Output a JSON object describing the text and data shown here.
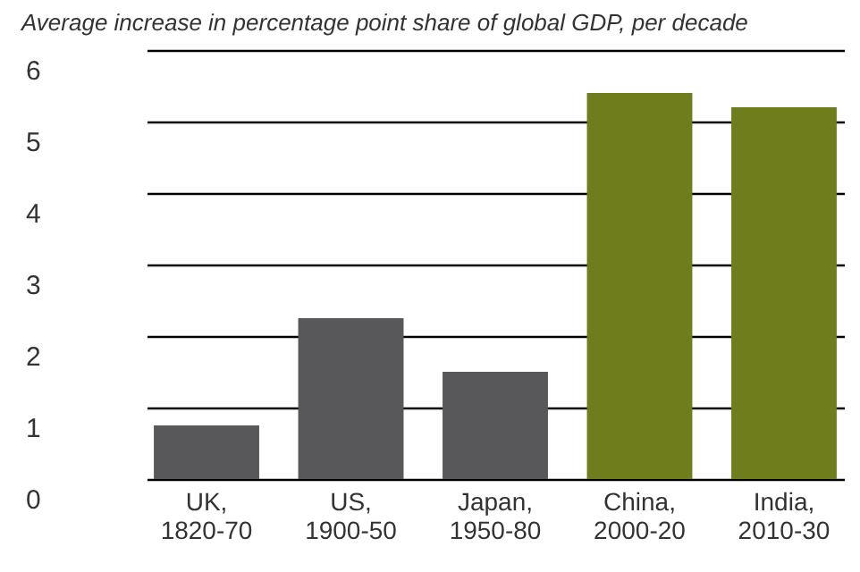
{
  "chart_data": {
    "type": "bar",
    "title": "Average increase in percentage point share of global GDP, per decade",
    "categories": [
      "UK,\n1820-70",
      "US,\n1900-50",
      "Japan,\n1950-80",
      "China,\n2000-20",
      "India,\n2010-30"
    ],
    "values": [
      0.75,
      2.25,
      1.5,
      5.4,
      5.2
    ],
    "colors": [
      "#58585a",
      "#58585a",
      "#58585a",
      "#6f7d1c",
      "#6f7d1c"
    ],
    "ylim": [
      0,
      6
    ],
    "yticks": [
      0,
      1,
      2,
      3,
      4,
      5,
      6
    ],
    "grid": "y"
  }
}
